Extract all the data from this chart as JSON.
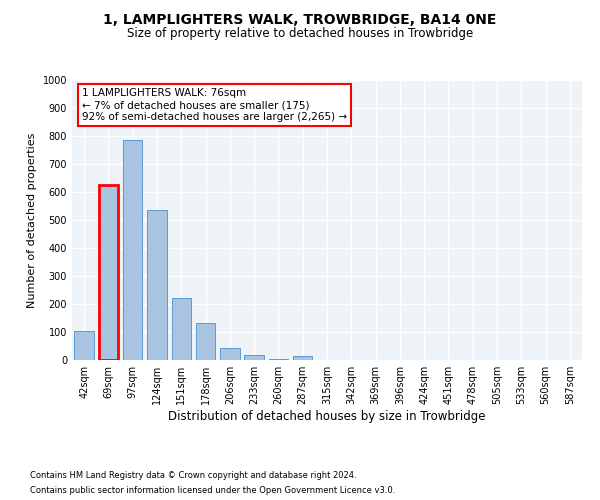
{
  "title": "1, LAMPLIGHTERS WALK, TROWBRIDGE, BA14 0NE",
  "subtitle": "Size of property relative to detached houses in Trowbridge",
  "xlabel": "Distribution of detached houses by size in Trowbridge",
  "ylabel": "Number of detached properties",
  "categories": [
    "42sqm",
    "69sqm",
    "97sqm",
    "124sqm",
    "151sqm",
    "178sqm",
    "206sqm",
    "233sqm",
    "260sqm",
    "287sqm",
    "315sqm",
    "342sqm",
    "369sqm",
    "396sqm",
    "424sqm",
    "451sqm",
    "478sqm",
    "505sqm",
    "533sqm",
    "560sqm",
    "587sqm"
  ],
  "values": [
    102,
    625,
    785,
    535,
    222,
    133,
    42,
    18,
    5,
    13,
    0,
    0,
    0,
    0,
    0,
    0,
    0,
    0,
    0,
    0,
    0
  ],
  "bar_color": "#a8c4e0",
  "bar_edge_color": "#5b9bd5",
  "highlight_bar_index": 1,
  "highlight_bar_edge_color": "#ff0000",
  "background_color": "#ffffff",
  "plot_bg_color": "#eef3f8",
  "grid_color": "#ffffff",
  "ylim": [
    0,
    1000
  ],
  "yticks": [
    0,
    100,
    200,
    300,
    400,
    500,
    600,
    700,
    800,
    900,
    1000
  ],
  "annotation_text": "1 LAMPLIGHTERS WALK: 76sqm\n← 7% of detached houses are smaller (175)\n92% of semi-detached houses are larger (2,265) →",
  "footer_line1": "Contains HM Land Registry data © Crown copyright and database right 2024.",
  "footer_line2": "Contains public sector information licensed under the Open Government Licence v3.0."
}
